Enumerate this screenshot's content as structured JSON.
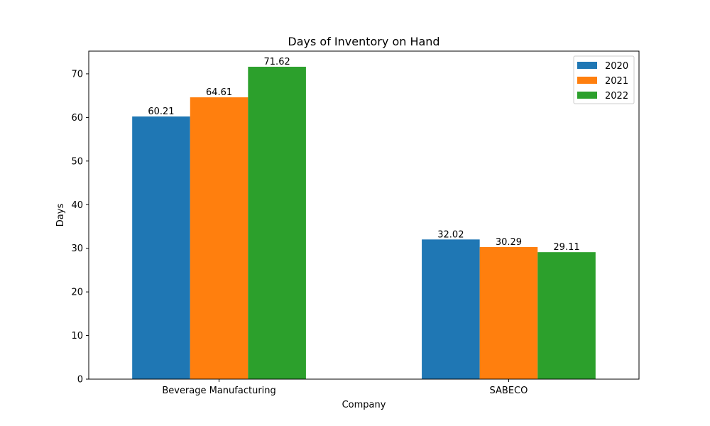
{
  "chart_data": {
    "type": "bar",
    "title": "Days of Inventory on Hand",
    "xlabel": "Company",
    "ylabel": "Days",
    "categories": [
      "Beverage Manufacturing",
      "SABECO"
    ],
    "series": [
      {
        "name": "2020",
        "values": [
          60.21,
          32.02
        ],
        "color": "#1f77b4"
      },
      {
        "name": "2021",
        "values": [
          64.61,
          30.29
        ],
        "color": "#ff7f0e"
      },
      {
        "name": "2022",
        "values": [
          71.62,
          29.11
        ],
        "color": "#2ca02c"
      }
    ],
    "ylim": [
      0,
      75.201
    ],
    "yticks": [
      0,
      10,
      20,
      30,
      40,
      50,
      60,
      70
    ],
    "grid": false,
    "legend_position": "top-right"
  }
}
